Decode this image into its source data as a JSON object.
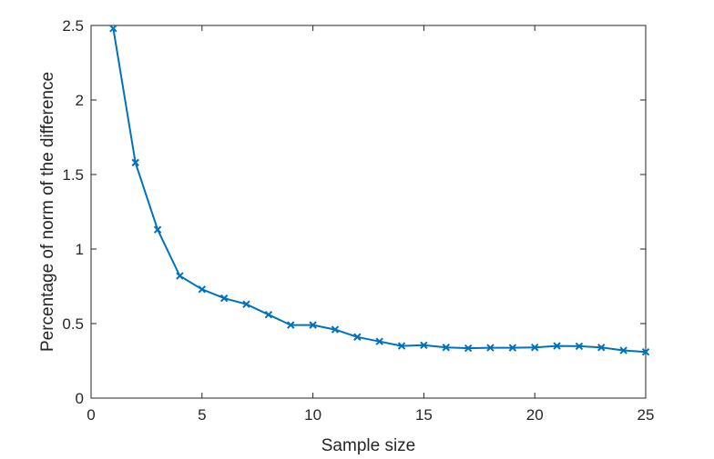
{
  "chart_data": {
    "type": "line",
    "title": "",
    "xlabel": "Sample size",
    "ylabel": "Percentage of norm of the difference",
    "xlim": [
      0,
      25
    ],
    "ylim": [
      0,
      2.5
    ],
    "xticks": [
      0,
      5,
      10,
      15,
      20,
      25
    ],
    "yticks": [
      0,
      0.5,
      1,
      1.5,
      2,
      2.5
    ],
    "xtick_labels": [
      "0",
      "5",
      "10",
      "15",
      "20",
      "25"
    ],
    "ytick_labels": [
      "0",
      "0.5",
      "1",
      "1.5",
      "2",
      "2.5"
    ],
    "grid": false,
    "marker": "x",
    "line_color": "#0072BD",
    "series": [
      {
        "x": [
          1,
          2,
          3,
          4,
          5,
          6,
          7,
          8,
          9,
          10,
          11,
          12,
          13,
          14,
          15,
          16,
          17,
          18,
          19,
          20,
          21,
          22,
          23,
          24,
          25
        ],
        "values": [
          2.48,
          1.58,
          1.13,
          0.82,
          0.73,
          0.67,
          0.63,
          0.56,
          0.49,
          0.49,
          0.46,
          0.41,
          0.38,
          0.35,
          0.355,
          0.34,
          0.335,
          0.338,
          0.338,
          0.34,
          0.35,
          0.348,
          0.34,
          0.32,
          0.31
        ]
      }
    ]
  }
}
